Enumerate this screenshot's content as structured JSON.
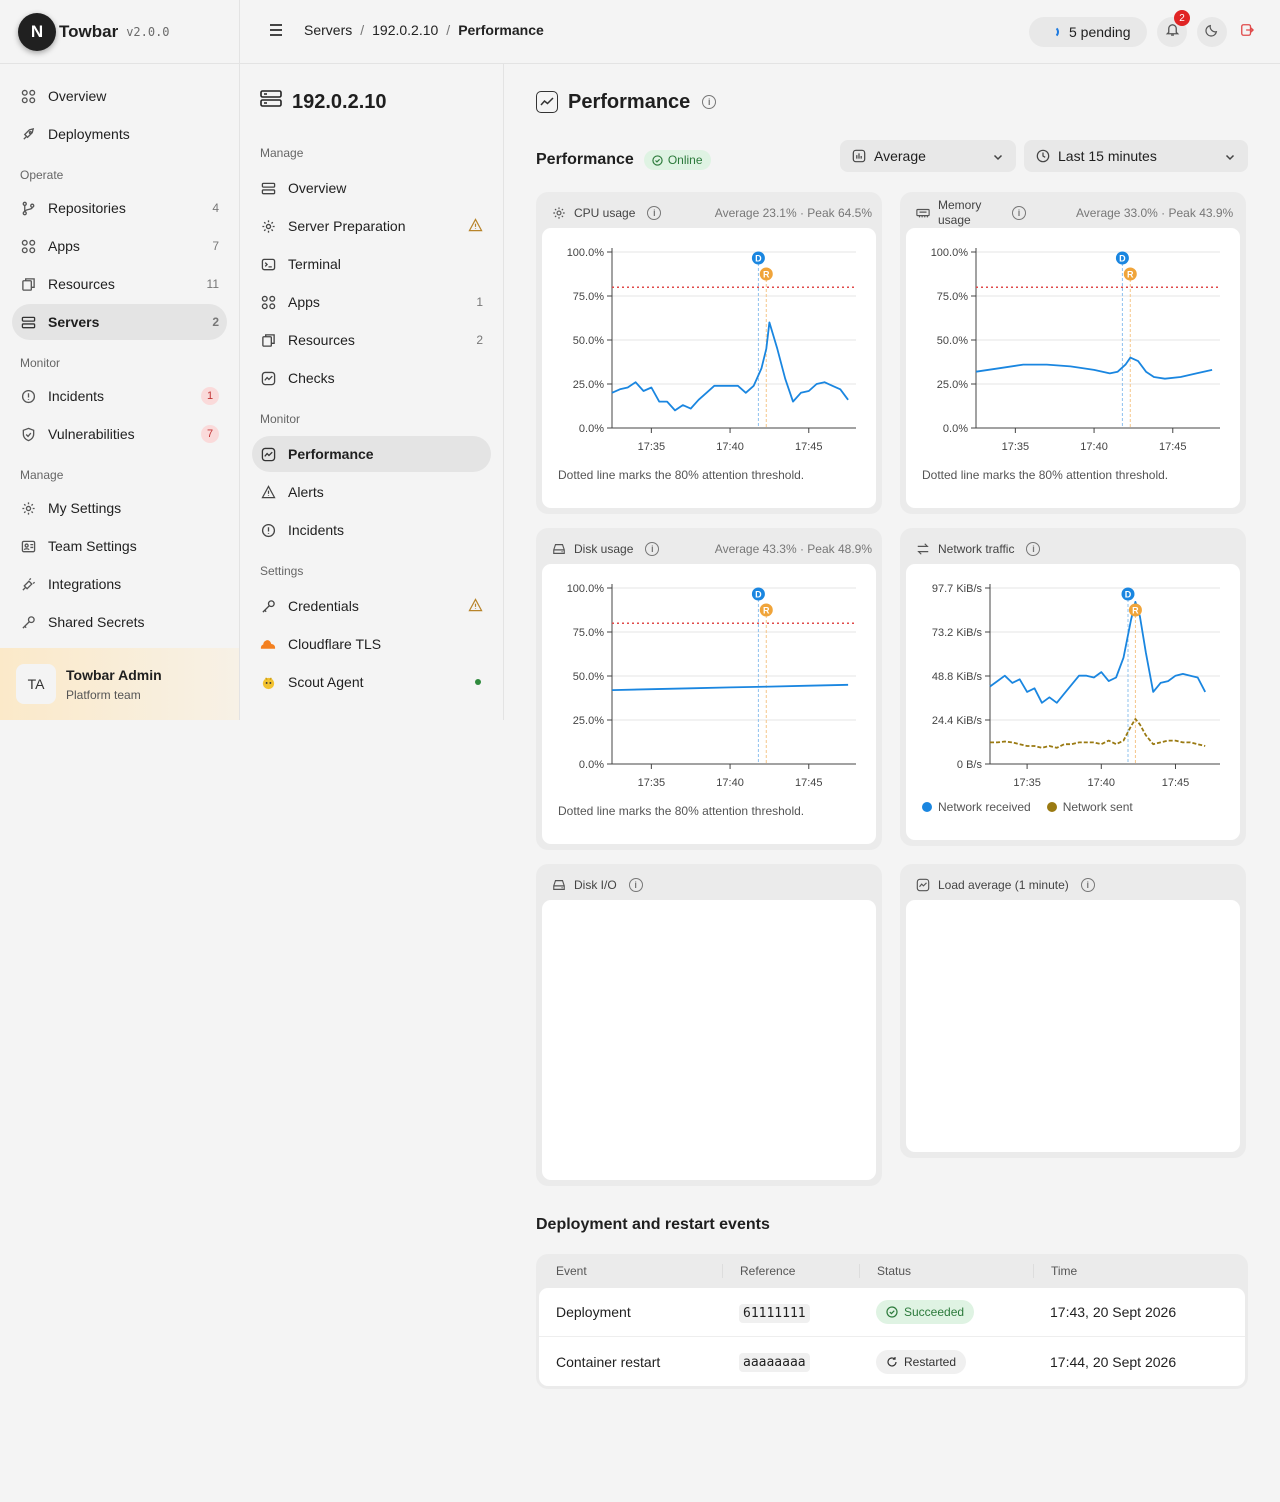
{
  "brand": {
    "initial": "N",
    "name": "Towbar",
    "version": "v2.0.0"
  },
  "sidebar": {
    "top": [
      {
        "label": "Overview",
        "icon": "grid-icon"
      },
      {
        "label": "Deployments",
        "icon": "rocket-icon"
      }
    ],
    "operate_label": "Operate",
    "operate": [
      {
        "label": "Repositories",
        "count": "4",
        "icon": "git-branch-icon"
      },
      {
        "label": "Apps",
        "count": "7",
        "icon": "grid-icon"
      },
      {
        "label": "Resources",
        "count": "11",
        "icon": "cube-icon"
      },
      {
        "label": "Servers",
        "count": "2",
        "icon": "server-icon",
        "active": true
      }
    ],
    "monitor_label": "Monitor",
    "monitor": [
      {
        "label": "Incidents",
        "count": "1",
        "icon": "alert-circle-icon"
      },
      {
        "label": "Vulnerabilities",
        "count": "7",
        "icon": "shield-icon"
      }
    ],
    "manage_label": "Manage",
    "manage": [
      {
        "label": "My Settings",
        "icon": "gear-icon"
      },
      {
        "label": "Team Settings",
        "icon": "team-icon"
      },
      {
        "label": "Integrations",
        "icon": "plug-icon"
      },
      {
        "label": "Shared Secrets",
        "icon": "key-icon"
      }
    ],
    "user": {
      "initials": "TA",
      "name": "Towbar Admin",
      "team": "Platform team"
    }
  },
  "topbar": {
    "breadcrumb": [
      "Servers",
      "192.0.2.10",
      "Performance"
    ],
    "pending_label": "5 pending",
    "notification_count": "2"
  },
  "server_nav": {
    "title": "192.0.2.10",
    "manage_label": "Manage",
    "manage": [
      {
        "label": "Overview",
        "icon": "server-icon"
      },
      {
        "label": "Server Preparation",
        "icon": "gear-icon",
        "warning": true
      },
      {
        "label": "Terminal",
        "icon": "terminal-icon"
      },
      {
        "label": "Apps",
        "icon": "grid-icon",
        "count": "1"
      },
      {
        "label": "Resources",
        "icon": "cube-icon",
        "count": "2"
      },
      {
        "label": "Checks",
        "icon": "activity-icon"
      }
    ],
    "monitor_label": "Monitor",
    "monitor": [
      {
        "label": "Performance",
        "icon": "activity-icon",
        "active": true
      },
      {
        "label": "Alerts",
        "icon": "warning-icon"
      },
      {
        "label": "Incidents",
        "icon": "alert-circle-icon"
      }
    ],
    "settings_label": "Settings",
    "settings": [
      {
        "label": "Credentials",
        "icon": "key-icon",
        "warning": true
      },
      {
        "label": "Cloudflare TLS",
        "icon": "cloud-icon"
      },
      {
        "label": "Scout Agent",
        "icon": "agent-icon",
        "status_dot": true
      }
    ]
  },
  "main": {
    "title": "Performance",
    "section_title": "Performance",
    "status": "Online",
    "aggregate_select": "Average",
    "range_select": "Last 15 minutes",
    "threshold_note": "Dotted line marks the 80% attention threshold.",
    "marker_deploy": "D",
    "marker_restart": "R",
    "events_title": "Deployment and restart events",
    "events_columns": [
      "Event",
      "Reference",
      "Status",
      "Time"
    ],
    "events": [
      {
        "event": "Deployment",
        "ref": "61111111",
        "status": "Succeeded",
        "kind": "ok",
        "time": "17:43, 20 Sept 2026"
      },
      {
        "event": "Container restart",
        "ref": "aaaaaaaa",
        "status": "Restarted",
        "kind": "rs",
        "time": "17:44, 20 Sept 2026"
      }
    ],
    "colors": {
      "series": "#1a86e0",
      "sent": "#9a7a12",
      "threshold": "#e04a4a",
      "deploy": "#1a86e0",
      "restart": "#f0a43a"
    }
  },
  "chart_data": [
    {
      "type": "line",
      "title": "CPU usage",
      "stats": "Average 23.1% · Peak 64.5%",
      "x_ticks": [
        "17:35",
        "17:40",
        "17:45"
      ],
      "y_ticks": [
        "0.0%",
        "25.0%",
        "50.0%",
        "75.0%",
        "100.0%"
      ],
      "ylim": [
        0,
        100
      ],
      "xlim": [
        17.5,
        33
      ],
      "threshold": 80,
      "deploy_x": 26.8,
      "restart_x": 27.3,
      "series": [
        {
          "values": [
            [
              17.5,
              20
            ],
            [
              18,
              22
            ],
            [
              18.5,
              23
            ],
            [
              19,
              26
            ],
            [
              19.5,
              21
            ],
            [
              20,
              23
            ],
            [
              20.5,
              15
            ],
            [
              21,
              15
            ],
            [
              21.5,
              10
            ],
            [
              22,
              13
            ],
            [
              22.5,
              11
            ],
            [
              23,
              16
            ],
            [
              23.5,
              20
            ],
            [
              24,
              24
            ],
            [
              24.5,
              24
            ],
            [
              25,
              24
            ],
            [
              25.5,
              24
            ],
            [
              26,
              20
            ],
            [
              26.5,
              24
            ],
            [
              27,
              34
            ],
            [
              27.3,
              45
            ],
            [
              27.5,
              60
            ],
            [
              28,
              45
            ],
            [
              28.5,
              28
            ],
            [
              29,
              15
            ],
            [
              29.5,
              20
            ],
            [
              30,
              21
            ],
            [
              30.5,
              25
            ],
            [
              31,
              26
            ],
            [
              31.5,
              24
            ],
            [
              32,
              22
            ],
            [
              32.5,
              16
            ]
          ]
        }
      ]
    },
    {
      "type": "line",
      "title": "Memory usage",
      "stats": "Average 33.0% · Peak 43.9%",
      "x_ticks": [
        "17:35",
        "17:40",
        "17:45"
      ],
      "y_ticks": [
        "0.0%",
        "25.0%",
        "50.0%",
        "75.0%",
        "100.0%"
      ],
      "ylim": [
        0,
        100
      ],
      "xlim": [
        17.5,
        33
      ],
      "threshold": 80,
      "deploy_x": 26.8,
      "restart_x": 27.3,
      "series": [
        {
          "values": [
            [
              17.5,
              32
            ],
            [
              19,
              34
            ],
            [
              20.5,
              36
            ],
            [
              22,
              36
            ],
            [
              23.5,
              35
            ],
            [
              25,
              33
            ],
            [
              26,
              31
            ],
            [
              26.5,
              32
            ],
            [
              27,
              36
            ],
            [
              27.3,
              40
            ],
            [
              27.8,
              38
            ],
            [
              28.3,
              32
            ],
            [
              28.8,
              29
            ],
            [
              29.5,
              28
            ],
            [
              30.5,
              29
            ],
            [
              31.5,
              31
            ],
            [
              32.5,
              33
            ]
          ]
        }
      ]
    },
    {
      "type": "line",
      "title": "Disk usage",
      "stats": "Average 43.3% · Peak 48.9%",
      "x_ticks": [
        "17:35",
        "17:40",
        "17:45"
      ],
      "y_ticks": [
        "0.0%",
        "25.0%",
        "50.0%",
        "75.0%",
        "100.0%"
      ],
      "ylim": [
        0,
        100
      ],
      "xlim": [
        17.5,
        33
      ],
      "threshold": 80,
      "deploy_x": 26.8,
      "restart_x": 27.3,
      "series": [
        {
          "values": [
            [
              17.5,
              42
            ],
            [
              20,
              42.5
            ],
            [
              22.5,
              43
            ],
            [
              25,
              43.5
            ],
            [
              27.5,
              44
            ],
            [
              30,
              44.5
            ],
            [
              32.5,
              45
            ]
          ]
        }
      ]
    },
    {
      "type": "line",
      "title": "Network traffic",
      "x_ticks": [
        "17:35",
        "17:40",
        "17:45"
      ],
      "y_ticks": [
        "0 B/s",
        "24.4 KiB/s",
        "48.8 KiB/s",
        "73.2 KiB/s",
        "97.7 KiB/s"
      ],
      "ylim": [
        0,
        97.7
      ],
      "xlim": [
        17.5,
        33
      ],
      "deploy_x": 26.8,
      "restart_x": 27.3,
      "series": [
        {
          "name": "Network received",
          "values": [
            [
              17.5,
              43
            ],
            [
              18,
              46
            ],
            [
              18.5,
              49
            ],
            [
              19,
              45
            ],
            [
              19.5,
              47
            ],
            [
              20,
              40
            ],
            [
              20.5,
              42
            ],
            [
              21,
              34
            ],
            [
              21.5,
              37
            ],
            [
              22,
              34
            ],
            [
              22.5,
              39
            ],
            [
              23,
              44
            ],
            [
              23.5,
              49
            ],
            [
              24,
              49
            ],
            [
              24.5,
              48
            ],
            [
              25,
              51
            ],
            [
              25.5,
              46
            ],
            [
              26,
              48
            ],
            [
              26.5,
              59
            ],
            [
              27,
              80
            ],
            [
              27.3,
              90
            ],
            [
              27.6,
              82
            ],
            [
              28,
              62
            ],
            [
              28.5,
              40
            ],
            [
              29,
              45
            ],
            [
              29.5,
              46
            ],
            [
              30,
              49
            ],
            [
              30.5,
              50
            ],
            [
              31,
              49
            ],
            [
              31.5,
              48
            ],
            [
              32,
              40
            ]
          ]
        },
        {
          "name": "Network sent",
          "values": [
            [
              17.5,
              12
            ],
            [
              18,
              12
            ],
            [
              18.5,
              12.5
            ],
            [
              19,
              12
            ],
            [
              19.5,
              11
            ],
            [
              20,
              10
            ],
            [
              20.5,
              10
            ],
            [
              21,
              9
            ],
            [
              21.5,
              10
            ],
            [
              22,
              9
            ],
            [
              22.5,
              11
            ],
            [
              23,
              11
            ],
            [
              23.5,
              12
            ],
            [
              24,
              12
            ],
            [
              24.5,
              12
            ],
            [
              25,
              11
            ],
            [
              25.5,
              13
            ],
            [
              26,
              11
            ],
            [
              26.5,
              13
            ],
            [
              27,
              21
            ],
            [
              27.3,
              25
            ],
            [
              27.6,
              22
            ],
            [
              28,
              16
            ],
            [
              28.5,
              11
            ],
            [
              29,
              12
            ],
            [
              29.5,
              13
            ],
            [
              30,
              13
            ],
            [
              30.5,
              12
            ],
            [
              31,
              12
            ],
            [
              31.5,
              11
            ],
            [
              32,
              10
            ]
          ]
        }
      ]
    },
    {
      "type": "line",
      "title": "Disk I/O",
      "series": []
    },
    {
      "type": "line",
      "title": "Load average (1 minute)",
      "series": []
    }
  ]
}
